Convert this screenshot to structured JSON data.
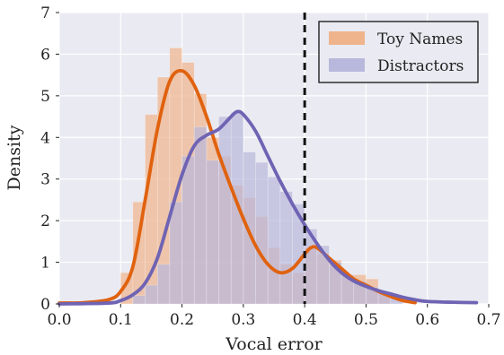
{
  "chart_data": {
    "type": "histogram",
    "xlabel": "Vocal error",
    "ylabel": "Density",
    "xlim": [
      0.0,
      0.7
    ],
    "ylim": [
      0,
      7
    ],
    "x_ticks": [
      "0.0",
      "0.1",
      "0.2",
      "0.3",
      "0.4",
      "0.5",
      "0.6",
      "0.7"
    ],
    "y_ticks": [
      "0",
      "1",
      "2",
      "3",
      "4",
      "5",
      "6",
      "7"
    ],
    "grid": true,
    "legend_position": "top-right",
    "reference_line": {
      "x": 0.4,
      "style": "dashed",
      "color": "#111111"
    },
    "series": [
      {
        "name": "Toy Names",
        "hist_color": "#f0b48c",
        "kde_color": "#e0620f",
        "bins": [
          {
            "x0": 0.1,
            "x1": 0.12,
            "density": 0.75
          },
          {
            "x0": 0.12,
            "x1": 0.14,
            "density": 2.45
          },
          {
            "x0": 0.14,
            "x1": 0.16,
            "density": 4.55
          },
          {
            "x0": 0.16,
            "x1": 0.18,
            "density": 5.45
          },
          {
            "x0": 0.18,
            "x1": 0.2,
            "density": 6.15
          },
          {
            "x0": 0.2,
            "x1": 0.22,
            "density": 5.8
          },
          {
            "x0": 0.22,
            "x1": 0.24,
            "density": 5.05
          },
          {
            "x0": 0.24,
            "x1": 0.26,
            "density": 4.0
          },
          {
            "x0": 0.26,
            "x1": 0.28,
            "density": 3.55
          },
          {
            "x0": 0.28,
            "x1": 0.3,
            "density": 2.85
          },
          {
            "x0": 0.3,
            "x1": 0.32,
            "density": 2.55
          },
          {
            "x0": 0.32,
            "x1": 0.34,
            "density": 2.1
          },
          {
            "x0": 0.34,
            "x1": 0.36,
            "density": 1.35
          },
          {
            "x0": 0.36,
            "x1": 0.38,
            "density": 0.95
          },
          {
            "x0": 0.38,
            "x1": 0.4,
            "density": 0.75
          },
          {
            "x0": 0.4,
            "x1": 0.42,
            "density": 1.35
          },
          {
            "x0": 0.42,
            "x1": 0.44,
            "density": 1.2
          },
          {
            "x0": 0.44,
            "x1": 0.46,
            "density": 1.05
          },
          {
            "x0": 0.46,
            "x1": 0.48,
            "density": 0.7
          },
          {
            "x0": 0.48,
            "x1": 0.5,
            "density": 0.7
          },
          {
            "x0": 0.5,
            "x1": 0.52,
            "density": 0.6
          },
          {
            "x0": 0.52,
            "x1": 0.54,
            "density": 0.3
          }
        ],
        "kde": [
          [
            0.0,
            0.02
          ],
          [
            0.04,
            0.03
          ],
          [
            0.08,
            0.1
          ],
          [
            0.1,
            0.3
          ],
          [
            0.12,
            0.9
          ],
          [
            0.14,
            2.5
          ],
          [
            0.16,
            4.2
          ],
          [
            0.18,
            5.35
          ],
          [
            0.2,
            5.6
          ],
          [
            0.22,
            5.25
          ],
          [
            0.24,
            4.5
          ],
          [
            0.26,
            3.6
          ],
          [
            0.28,
            2.8
          ],
          [
            0.3,
            2.05
          ],
          [
            0.32,
            1.4
          ],
          [
            0.34,
            0.95
          ],
          [
            0.36,
            0.75
          ],
          [
            0.38,
            0.85
          ],
          [
            0.4,
            1.2
          ],
          [
            0.41,
            1.35
          ],
          [
            0.42,
            1.35
          ],
          [
            0.44,
            1.1
          ],
          [
            0.46,
            0.85
          ],
          [
            0.48,
            0.6
          ],
          [
            0.5,
            0.45
          ],
          [
            0.52,
            0.3
          ],
          [
            0.54,
            0.18
          ],
          [
            0.56,
            0.08
          ],
          [
            0.58,
            0.03
          ]
        ]
      },
      {
        "name": "Distractors",
        "hist_color": "#b8b8dc",
        "kde_color": "#6f63b3",
        "bins": [
          {
            "x0": 0.12,
            "x1": 0.14,
            "density": 0.2
          },
          {
            "x0": 0.14,
            "x1": 0.16,
            "density": 0.45
          },
          {
            "x0": 0.16,
            "x1": 0.18,
            "density": 0.95
          },
          {
            "x0": 0.18,
            "x1": 0.2,
            "density": 2.45
          },
          {
            "x0": 0.2,
            "x1": 0.22,
            "density": 3.55
          },
          {
            "x0": 0.22,
            "x1": 0.24,
            "density": 4.25
          },
          {
            "x0": 0.24,
            "x1": 0.26,
            "density": 3.45
          },
          {
            "x0": 0.26,
            "x1": 0.28,
            "density": 4.5
          },
          {
            "x0": 0.28,
            "x1": 0.3,
            "density": 4.6
          },
          {
            "x0": 0.3,
            "x1": 0.32,
            "density": 3.65
          },
          {
            "x0": 0.32,
            "x1": 0.34,
            "density": 3.4
          },
          {
            "x0": 0.34,
            "x1": 0.36,
            "density": 3.05
          },
          {
            "x0": 0.36,
            "x1": 0.38,
            "density": 2.7
          },
          {
            "x0": 0.38,
            "x1": 0.4,
            "density": 2.4
          },
          {
            "x0": 0.4,
            "x1": 0.42,
            "density": 1.8
          },
          {
            "x0": 0.42,
            "x1": 0.44,
            "density": 1.4
          },
          {
            "x0": 0.44,
            "x1": 0.46,
            "density": 1.0
          },
          {
            "x0": 0.46,
            "x1": 0.48,
            "density": 0.7
          },
          {
            "x0": 0.48,
            "x1": 0.5,
            "density": 0.55
          },
          {
            "x0": 0.5,
            "x1": 0.52,
            "density": 0.4
          },
          {
            "x0": 0.52,
            "x1": 0.54,
            "density": 0.3
          },
          {
            "x0": 0.54,
            "x1": 0.56,
            "density": 0.15
          }
        ],
        "kde": [
          [
            0.0,
            0.0
          ],
          [
            0.08,
            0.02
          ],
          [
            0.1,
            0.08
          ],
          [
            0.12,
            0.22
          ],
          [
            0.14,
            0.5
          ],
          [
            0.16,
            1.1
          ],
          [
            0.18,
            2.1
          ],
          [
            0.2,
            3.1
          ],
          [
            0.22,
            3.8
          ],
          [
            0.24,
            4.05
          ],
          [
            0.26,
            4.2
          ],
          [
            0.28,
            4.5
          ],
          [
            0.29,
            4.62
          ],
          [
            0.3,
            4.55
          ],
          [
            0.32,
            4.15
          ],
          [
            0.34,
            3.55
          ],
          [
            0.36,
            2.95
          ],
          [
            0.38,
            2.4
          ],
          [
            0.4,
            1.9
          ],
          [
            0.42,
            1.45
          ],
          [
            0.44,
            1.05
          ],
          [
            0.46,
            0.75
          ],
          [
            0.48,
            0.55
          ],
          [
            0.5,
            0.42
          ],
          [
            0.52,
            0.32
          ],
          [
            0.54,
            0.24
          ],
          [
            0.56,
            0.16
          ],
          [
            0.58,
            0.1
          ],
          [
            0.6,
            0.06
          ],
          [
            0.64,
            0.04
          ],
          [
            0.68,
            0.03
          ]
        ]
      }
    ]
  }
}
